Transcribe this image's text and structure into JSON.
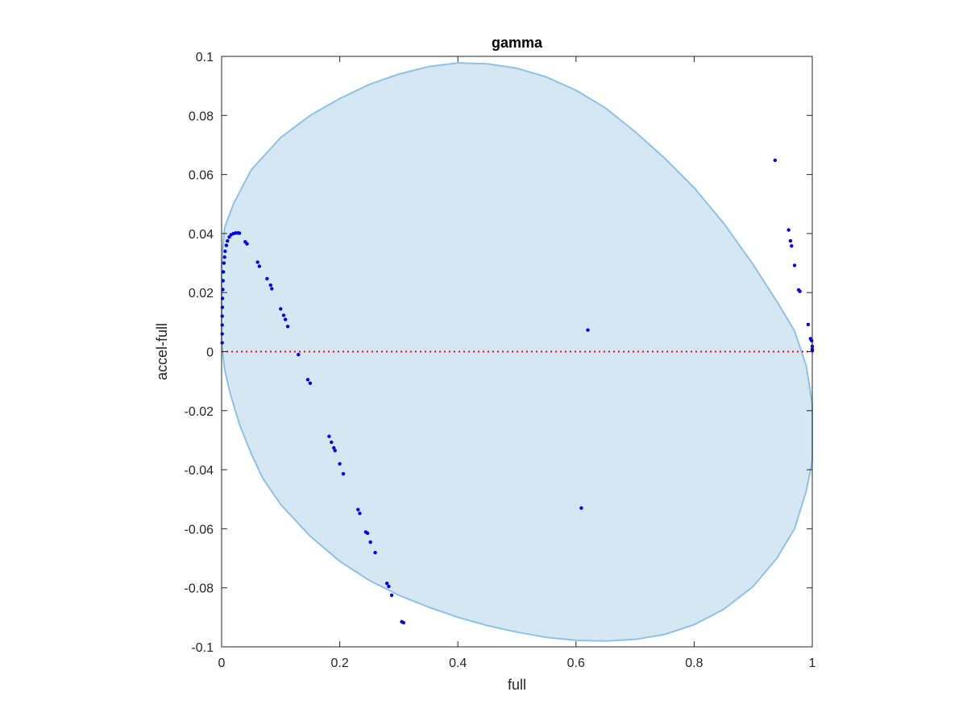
{
  "chart_data": {
    "type": "scatter",
    "title": "gamma",
    "xlabel": "full",
    "ylabel": "accel-full",
    "xlim": [
      0,
      1
    ],
    "ylim": [
      -0.1,
      0.1
    ],
    "xticks": [
      0,
      0.2,
      0.4,
      0.6,
      0.8,
      1
    ],
    "xtick_labels": [
      "0",
      "0.2",
      "0.4",
      "0.6",
      "0.8",
      "1"
    ],
    "yticks": [
      -0.1,
      -0.08,
      -0.06,
      -0.04,
      -0.02,
      0,
      0.02,
      0.04,
      0.06,
      0.08,
      0.1
    ],
    "ytick_labels": [
      "-0.1",
      "-0.08",
      "-0.06",
      "-0.04",
      "-0.02",
      "0",
      "0.02",
      "0.04",
      "0.06",
      "0.08",
      "0.1"
    ],
    "grid": false,
    "legend": "none",
    "reference_line": {
      "y": 0,
      "style": "dotted",
      "color": "#ff0000"
    },
    "region": {
      "shape": "closed-curve",
      "fill": "#d6e7f4",
      "stroke": "#8cc2e6",
      "boundary": [
        [
          0,
          0.03
        ],
        [
          0.005,
          0.042
        ],
        [
          0.02,
          0.05
        ],
        [
          0.05,
          0.0615
        ],
        [
          0.1,
          0.0725
        ],
        [
          0.15,
          0.08
        ],
        [
          0.2,
          0.0857
        ],
        [
          0.25,
          0.0905
        ],
        [
          0.3,
          0.094
        ],
        [
          0.35,
          0.0965
        ],
        [
          0.4,
          0.0978
        ],
        [
          0.45,
          0.0975
        ],
        [
          0.5,
          0.096
        ],
        [
          0.55,
          0.093
        ],
        [
          0.6,
          0.0885
        ],
        [
          0.65,
          0.0825
        ],
        [
          0.7,
          0.0745
        ],
        [
          0.75,
          0.0655
        ],
        [
          0.8,
          0.0555
        ],
        [
          0.85,
          0.0435
        ],
        [
          0.9,
          0.0295
        ],
        [
          0.94,
          0.017
        ],
        [
          0.97,
          0.007
        ],
        [
          0.99,
          -0.005
        ],
        [
          1,
          -0.018
        ],
        [
          1,
          -0.037
        ],
        [
          0.99,
          -0.047
        ],
        [
          0.97,
          -0.06
        ],
        [
          0.94,
          -0.07
        ],
        [
          0.9,
          -0.0795
        ],
        [
          0.85,
          -0.0873
        ],
        [
          0.8,
          -0.0925
        ],
        [
          0.75,
          -0.0958
        ],
        [
          0.7,
          -0.0975
        ],
        [
          0.65,
          -0.098
        ],
        [
          0.6,
          -0.0978
        ],
        [
          0.55,
          -0.0968
        ],
        [
          0.5,
          -0.095
        ],
        [
          0.45,
          -0.0928
        ],
        [
          0.4,
          -0.09
        ],
        [
          0.35,
          -0.0865
        ],
        [
          0.3,
          -0.0825
        ],
        [
          0.25,
          -0.0775
        ],
        [
          0.2,
          -0.071
        ],
        [
          0.15,
          -0.0625
        ],
        [
          0.1,
          -0.0518
        ],
        [
          0.07,
          -0.043
        ],
        [
          0.05,
          -0.0345
        ],
        [
          0.03,
          -0.0245
        ],
        [
          0.015,
          -0.0145
        ],
        [
          0.005,
          -0.006
        ],
        [
          0,
          0.003
        ]
      ]
    },
    "series": [
      {
        "marker": "dot",
        "color": "#0000ee",
        "points": [
          [
            0.001,
            0.003
          ],
          [
            0.001,
            0.006
          ],
          [
            0.001,
            0.009
          ],
          [
            0.001,
            0.012
          ],
          [
            0.0012,
            0.015
          ],
          [
            0.0015,
            0.018
          ],
          [
            0.002,
            0.021
          ],
          [
            0.0025,
            0.024
          ],
          [
            0.003,
            0.027
          ],
          [
            0.004,
            0.03
          ],
          [
            0.005,
            0.032
          ],
          [
            0.006,
            0.034
          ],
          [
            0.008,
            0.036
          ],
          [
            0.01,
            0.0375
          ],
          [
            0.013,
            0.0388
          ],
          [
            0.016,
            0.0396
          ],
          [
            0.02,
            0.04
          ],
          [
            0.024,
            0.0402
          ],
          [
            0.028,
            0.0402
          ],
          [
            0.03,
            0.0401
          ],
          [
            0.04,
            0.0372
          ],
          [
            0.043,
            0.0365
          ],
          [
            0.061,
            0.0303
          ],
          [
            0.064,
            0.0289
          ],
          [
            0.077,
            0.0247
          ],
          [
            0.083,
            0.0225
          ],
          [
            0.085,
            0.0213
          ],
          [
            0.1,
            0.0145
          ],
          [
            0.105,
            0.0123
          ],
          [
            0.108,
            0.0109
          ],
          [
            0.112,
            0.0085
          ],
          [
            0.13,
            -0.001
          ],
          [
            0.146,
            -0.0095
          ],
          [
            0.15,
            -0.0107
          ],
          [
            0.182,
            -0.0287
          ],
          [
            0.186,
            -0.0307
          ],
          [
            0.19,
            -0.0326
          ],
          [
            0.192,
            -0.0335
          ],
          [
            0.2,
            -0.038
          ],
          [
            0.206,
            -0.0414
          ],
          [
            0.231,
            -0.0535
          ],
          [
            0.234,
            -0.0548
          ],
          [
            0.244,
            -0.0611
          ],
          [
            0.247,
            -0.0615
          ],
          [
            0.252,
            -0.0645
          ],
          [
            0.26,
            -0.0681
          ],
          [
            0.28,
            -0.0785
          ],
          [
            0.283,
            -0.0795
          ],
          [
            0.288,
            -0.0825
          ],
          [
            0.305,
            -0.0915
          ],
          [
            0.308,
            -0.0918
          ],
          [
            0.609,
            -0.053
          ],
          [
            0.62,
            0.0073
          ],
          [
            0.937,
            0.0648
          ],
          [
            0.96,
            0.0412
          ],
          [
            0.963,
            0.0375
          ],
          [
            0.965,
            0.0358
          ],
          [
            0.97,
            0.0292
          ],
          [
            0.977,
            0.0209
          ],
          [
            0.979,
            0.0204
          ],
          [
            0.993,
            0.0092
          ],
          [
            0.997,
            0.0044
          ],
          [
            0.999,
            0.0037
          ],
          [
            1,
            0.0018
          ],
          [
            1,
            0.0008
          ],
          [
            1,
            0.0003
          ]
        ]
      }
    ]
  }
}
